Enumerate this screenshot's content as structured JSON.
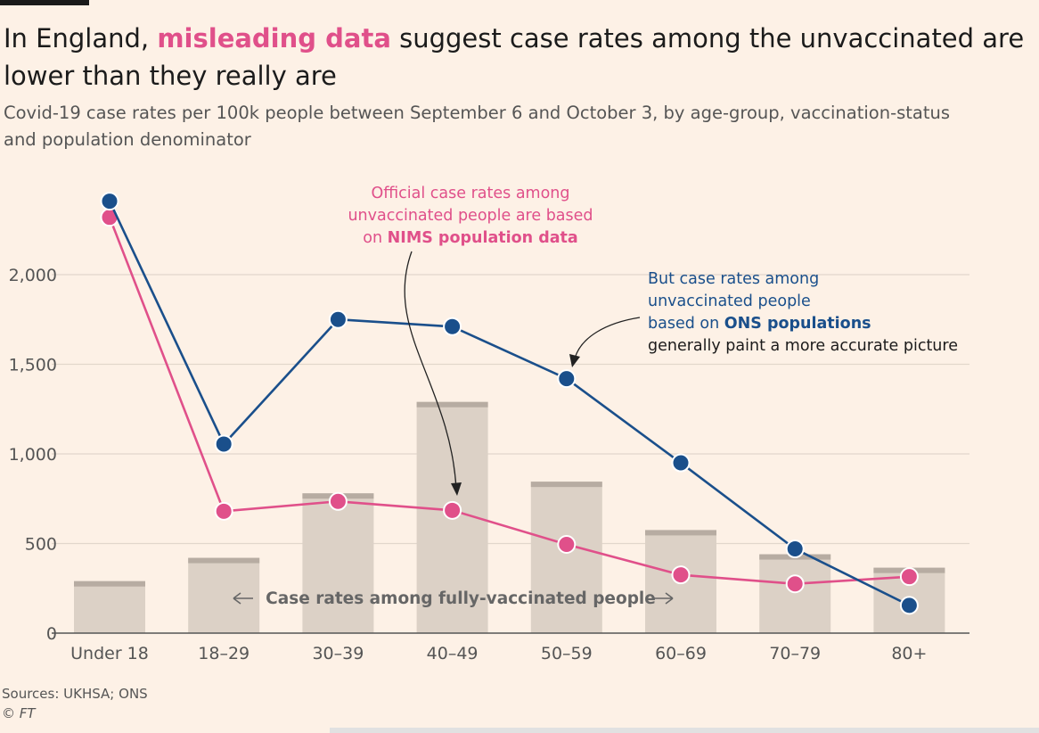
{
  "title": {
    "before": "In England, ",
    "highlight": "misleading data",
    "after": " suggest case rates among the unvaccinated are lower than they really are"
  },
  "subtitle": "Covid-19 case rates per 100k people between September 6 and October 3, by age-group, vaccination-status and population denominator",
  "colors": {
    "background": "#fdf1e6",
    "nims": "#e0508a",
    "ons": "#1a4f8b",
    "bars": "#dcd1c6",
    "bar_cap": "#b7aca2"
  },
  "chart_data": {
    "type": "bar",
    "categories": [
      "Under 18",
      "18–29",
      "30–39",
      "40–49",
      "50–59",
      "60–69",
      "70–79",
      "80+"
    ],
    "series": [
      {
        "type": "bar",
        "values": [
          290,
          420,
          780,
          1290,
          845,
          575,
          440,
          365
        ]
      },
      {
        "type": "line",
        "values": [
          2320,
          680,
          735,
          685,
          495,
          325,
          275,
          315
        ]
      },
      {
        "type": "line",
        "values": [
          2410,
          1055,
          1750,
          1710,
          1420,
          950,
          470,
          155
        ]
      }
    ],
    "ylim": [
      0,
      2500
    ],
    "yticks": [
      0,
      500,
      1000,
      1500,
      2000
    ],
    "ytick_labels": [
      "0",
      "500",
      "1,000",
      "1,500",
      "2,000"
    ],
    "grid": true,
    "annotations": {
      "bars_label": "Case rates among fully-vaccinated people",
      "nims_line1": "Official case rates among",
      "nims_line2": "unvaccinated people are based",
      "nims_line3_pre": "on ",
      "nims_line3_bold": "NIMS population data",
      "ons_line1": "But case rates among",
      "ons_line2": "unvaccinated people",
      "ons_line3_pre": "based on ",
      "ons_line3_bold": "ONS populations",
      "ons_line4": "generally paint a more accurate picture"
    }
  },
  "footer": {
    "sources": "Sources: UKHSA; ONS",
    "copyright": "© FT"
  }
}
